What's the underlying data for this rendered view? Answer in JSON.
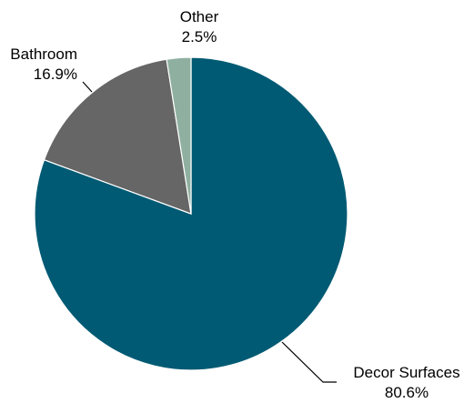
{
  "chart_data": {
    "type": "pie",
    "start_angle_deg": 0,
    "direction": "clockwise",
    "slices": [
      {
        "label": "Decor Surfaces",
        "value_label": "80.6%",
        "value": 80.6,
        "color": "#005a73"
      },
      {
        "label": "Bathroom",
        "value_label": "16.9%",
        "value": 16.9,
        "color": "#666666"
      },
      {
        "label": "Other",
        "value_label": "2.5%",
        "value": 2.5,
        "color": "#8fb0a0"
      }
    ],
    "legend": "none"
  }
}
